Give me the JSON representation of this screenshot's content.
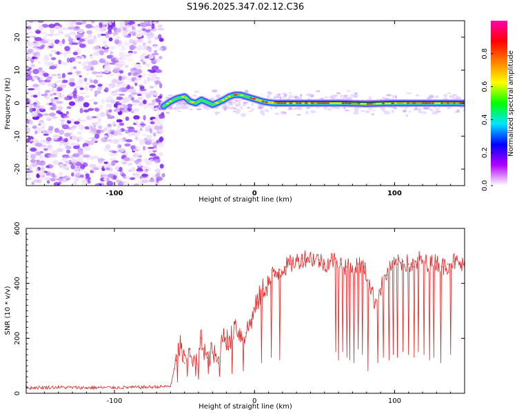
{
  "title": "S196.2025.347.02.12.C36",
  "chart_data": [
    {
      "type": "heatmap",
      "title": "S196.2025.347.02.12.C36",
      "xlabel": "Height of straight line (km)",
      "ylabel": "Frequency (Hz)",
      "xlim": [
        -163,
        150
      ],
      "ylim": [
        -25,
        25
      ],
      "xticks": [
        -100,
        0,
        100
      ],
      "yticks": [
        -20,
        -10,
        0,
        10,
        20
      ],
      "noise_region_x": [
        -163,
        -65
      ],
      "trace_x_start": -65,
      "ridge": [
        {
          "x": -65,
          "y": -1.0
        },
        {
          "x": -60,
          "y": 0.5
        },
        {
          "x": -55,
          "y": 1.5
        },
        {
          "x": -50,
          "y": 2.0
        },
        {
          "x": -46,
          "y": 0.5
        },
        {
          "x": -42,
          "y": 0.0
        },
        {
          "x": -38,
          "y": 1.0
        },
        {
          "x": -34,
          "y": 0.3
        },
        {
          "x": -30,
          "y": -0.5
        },
        {
          "x": -26,
          "y": 0.2
        },
        {
          "x": -22,
          "y": 1.0
        },
        {
          "x": -18,
          "y": 2.0
        },
        {
          "x": -14,
          "y": 2.5
        },
        {
          "x": -10,
          "y": 2.5
        },
        {
          "x": -6,
          "y": 2.0
        },
        {
          "x": -2,
          "y": 1.5
        },
        {
          "x": 2,
          "y": 1.0
        },
        {
          "x": 6,
          "y": 0.5
        },
        {
          "x": 10,
          "y": 0.2
        },
        {
          "x": 15,
          "y": 0.0
        },
        {
          "x": 40,
          "y": 0.0
        },
        {
          "x": 60,
          "y": 0.0
        },
        {
          "x": 80,
          "y": -0.2
        },
        {
          "x": 100,
          "y": 0.0
        },
        {
          "x": 120,
          "y": 0.0
        },
        {
          "x": 150,
          "y": 0.0
        }
      ],
      "colorbar": {
        "label": "Normalized spectral amplitude",
        "ticks": [
          0.0,
          0.2,
          0.4,
          0.6,
          0.8
        ],
        "range": [
          0,
          1
        ],
        "colors": [
          "#ffffff",
          "#b000ff",
          "#0000ff",
          "#00e5ff",
          "#00ff00",
          "#ffff00",
          "#ff7f00",
          "#ff0000",
          "#ff00b0"
        ]
      },
      "trace_line_color": "#000000"
    },
    {
      "type": "line",
      "xlabel": "Height of straight line (km)",
      "ylabel": "SNR (10 * v/v)",
      "xlim": [
        -163,
        150
      ],
      "ylim": [
        0,
        600
      ],
      "xticks": [
        -100,
        0,
        100
      ],
      "yticks": [
        0,
        200,
        400,
        600
      ],
      "color": "#e02020",
      "series": [
        {
          "name": "SNR",
          "x": [
            -163,
            -140,
            -120,
            -100,
            -80,
            -60,
            -56,
            -53,
            -50,
            -46,
            -42,
            -38,
            -34,
            -30,
            -26,
            -22,
            -18,
            -14,
            -10,
            -6,
            -2,
            2,
            6,
            10,
            14,
            18,
            22,
            26,
            30,
            34,
            38,
            42,
            46,
            50,
            54,
            58,
            62,
            66,
            70,
            74,
            78,
            82,
            86,
            90,
            94,
            98,
            102,
            106,
            110,
            114,
            118,
            122,
            126,
            130,
            134,
            138,
            142,
            146,
            150
          ],
          "values": [
            20,
            22,
            20,
            21,
            22,
            25,
            120,
            180,
            110,
            160,
            90,
            200,
            130,
            150,
            110,
            230,
            170,
            260,
            210,
            220,
            270,
            330,
            380,
            400,
            430,
            450,
            460,
            470,
            480,
            490,
            495,
            490,
            485,
            470,
            480,
            490,
            470,
            460,
            450,
            470,
            460,
            400,
            330,
            380,
            430,
            460,
            470,
            480,
            470,
            460,
            490,
            480,
            470,
            480,
            460,
            470,
            480,
            470,
            460
          ]
        }
      ],
      "dropouts": [
        {
          "x": -55,
          "v": 40
        },
        {
          "x": -48,
          "v": 60
        },
        {
          "x": -40,
          "v": 50
        },
        {
          "x": -33,
          "v": 70
        },
        {
          "x": -25,
          "v": 60
        },
        {
          "x": -16,
          "v": 70
        },
        {
          "x": -8,
          "v": 80
        },
        {
          "x": 5,
          "v": 110
        },
        {
          "x": 12,
          "v": 130
        },
        {
          "x": 18,
          "v": 120
        },
        {
          "x": 58,
          "v": 150
        },
        {
          "x": 60,
          "v": 120
        },
        {
          "x": 63,
          "v": 150
        },
        {
          "x": 66,
          "v": 130
        },
        {
          "x": 68,
          "v": 120
        },
        {
          "x": 71,
          "v": 110
        },
        {
          "x": 74,
          "v": 160
        },
        {
          "x": 77,
          "v": 140
        },
        {
          "x": 81,
          "v": 80
        },
        {
          "x": 88,
          "v": 110
        },
        {
          "x": 92,
          "v": 130
        },
        {
          "x": 96,
          "v": 120
        },
        {
          "x": 99,
          "v": 140
        },
        {
          "x": 102,
          "v": 130
        },
        {
          "x": 106,
          "v": 150
        },
        {
          "x": 110,
          "v": 140
        },
        {
          "x": 114,
          "v": 130
        },
        {
          "x": 117,
          "v": 150
        },
        {
          "x": 121,
          "v": 140
        },
        {
          "x": 125,
          "v": 120
        },
        {
          "x": 128,
          "v": 130
        },
        {
          "x": 133,
          "v": 110
        },
        {
          "x": 140,
          "v": 140
        }
      ]
    }
  ]
}
